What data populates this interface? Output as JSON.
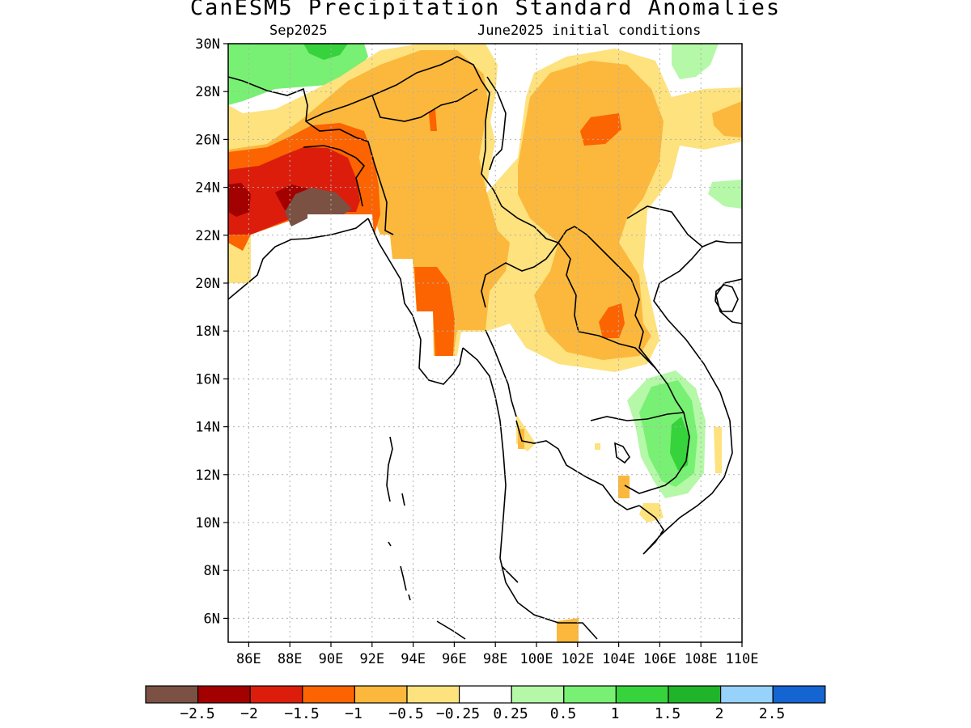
{
  "header": {
    "title": "CanESM5 Precipitation Standard Anomalies",
    "valid_month": "Sep2025",
    "init": "June2025 initial conditions"
  },
  "map": {
    "lat_labels": [
      "6N",
      "8N",
      "10N",
      "12N",
      "14N",
      "16N",
      "18N",
      "20N",
      "22N",
      "24N",
      "26N",
      "28N",
      "30N"
    ],
    "lon_labels": [
      "86E",
      "88E",
      "90E",
      "92E",
      "94E",
      "96E",
      "98E",
      "100E",
      "102E",
      "104E",
      "106E",
      "108E",
      "110E"
    ],
    "lat_range": [
      5,
      30
    ],
    "lon_range": [
      85,
      110
    ],
    "grid": "dotted"
  },
  "colorbar": {
    "labels": [
      "−2.5",
      "−2",
      "−1.5",
      "−1",
      "−0.5",
      "−0.25",
      "0.25",
      "0.5",
      "1",
      "1.5",
      "2",
      "2.5"
    ],
    "colors": [
      "#7b5144",
      "#a30000",
      "#dc1d0c",
      "#fb6400",
      "#fbb83c",
      "#fde27e",
      "#ffffff",
      "#b4f8a8",
      "#78f073",
      "#37d33c",
      "#1fb42a",
      "#96d2fa",
      "#1464d2"
    ]
  }
}
